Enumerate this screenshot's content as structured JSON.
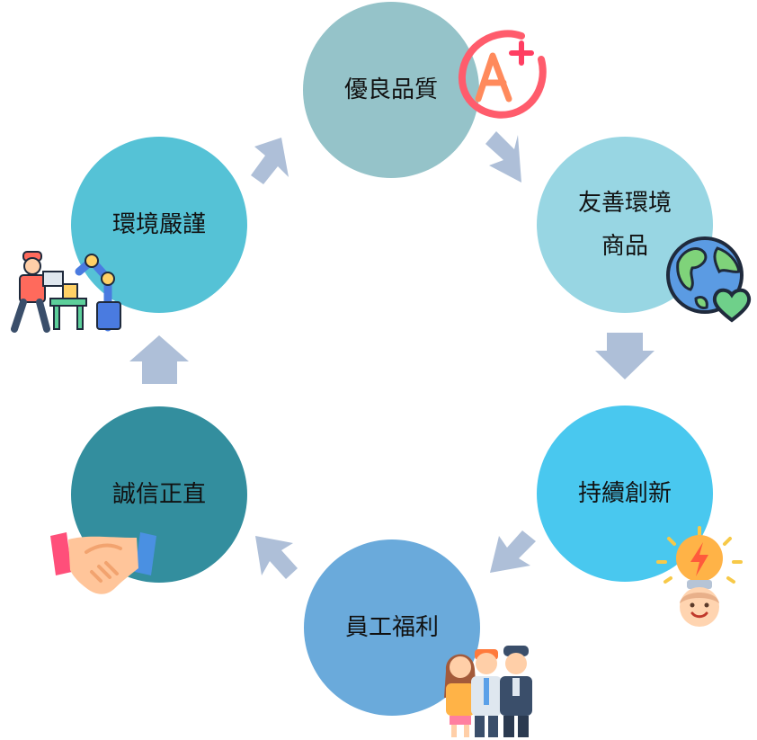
{
  "nodes": {
    "quality": {
      "label": "優良品質",
      "color": "#95c3c9"
    },
    "eco": {
      "line1": "友善環境",
      "line2": "商品",
      "color": "#98d6e3"
    },
    "innovation": {
      "label": "持續創新",
      "color": "#49c8ef"
    },
    "welfare": {
      "label": "員工福利",
      "color": "#6aaadb"
    },
    "integrity": {
      "label": "誠信正直",
      "color": "#338e9e"
    },
    "environment": {
      "label": "環境嚴謹",
      "color": "#55c2d6"
    }
  },
  "arrow_color": "#aebfd8",
  "icons": [
    "a-plus-grade-icon",
    "earth-heart-icon",
    "lightbulb-idea-icon",
    "employees-group-icon",
    "handshake-icon",
    "factory-worker-robot-icon"
  ]
}
